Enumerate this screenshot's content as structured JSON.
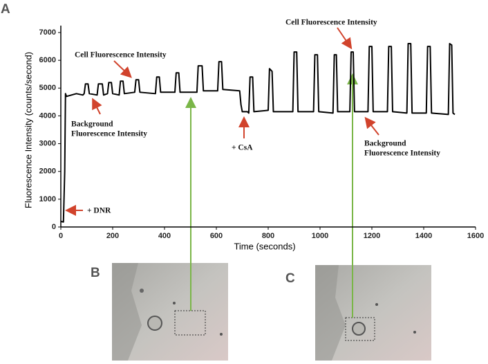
{
  "chart_data": {
    "type": "line",
    "panel_labels": [
      "A",
      "B",
      "C"
    ],
    "x_label": "Time (seconds)",
    "y_label": "Fluorescence Intensity (counts/second)",
    "xlim": [
      0,
      1600
    ],
    "xticks": [
      0,
      200,
      400,
      600,
      800,
      1000,
      1200,
      1400,
      1600
    ],
    "ylim": [
      0,
      7000
    ],
    "yticks": [
      0,
      1000,
      2000,
      3000,
      4000,
      5000,
      6000,
      7000
    ],
    "color": "#000000",
    "annotations": {
      "dnr": "+ DNR",
      "csa": "+ CsA",
      "cell_left": "Cell Fluorescence Intensity",
      "cell_right": "Cell Fluorescence Intensity",
      "background_left": [
        "Background",
        "Fluorescence Intensity"
      ],
      "background_right": [
        "Background",
        "Fluorescence Intensity"
      ]
    },
    "x": [
      0,
      10,
      15,
      18,
      22,
      60,
      85,
      90,
      95,
      105,
      110,
      140,
      145,
      160,
      165,
      180,
      185,
      195,
      200,
      225,
      230,
      240,
      245,
      285,
      290,
      300,
      305,
      365,
      370,
      380,
      385,
      440,
      445,
      455,
      460,
      525,
      530,
      545,
      550,
      605,
      610,
      620,
      625,
      690,
      695,
      700,
      720,
      725,
      730,
      740,
      745,
      800,
      805,
      815,
      820,
      895,
      900,
      910,
      915,
      975,
      980,
      990,
      995,
      1050,
      1055,
      1063,
      1068,
      1115,
      1120,
      1128,
      1133,
      1185,
      1190,
      1200,
      1205,
      1260,
      1265,
      1275,
      1280,
      1335,
      1340,
      1350,
      1355,
      1410,
      1415,
      1425,
      1430,
      1495,
      1500,
      1508,
      1513,
      1520
    ],
    "values": [
      200,
      180,
      2000,
      4800,
      4700,
      4800,
      4750,
      4800,
      5150,
      5150,
      4800,
      4750,
      5150,
      5150,
      4750,
      4800,
      5200,
      5200,
      4800,
      4750,
      5250,
      5250,
      4800,
      4850,
      5300,
      5300,
      4850,
      4800,
      5400,
      5400,
      4850,
      4850,
      5550,
      5550,
      4850,
      4850,
      5800,
      5800,
      4900,
      4900,
      5950,
      5950,
      4950,
      4900,
      4400,
      4150,
      4150,
      4100,
      5400,
      5400,
      4150,
      4200,
      5700,
      5600,
      4150,
      4150,
      6300,
      6300,
      4150,
      4150,
      6200,
      6200,
      4150,
      4100,
      6200,
      6200,
      4150,
      4150,
      6300,
      6300,
      4150,
      4150,
      6500,
      6500,
      4150,
      4150,
      6500,
      6500,
      4150,
      4100,
      6600,
      6600,
      4100,
      4100,
      6500,
      6500,
      4100,
      4050,
      6600,
      6550,
      4100,
      4050
    ]
  }
}
